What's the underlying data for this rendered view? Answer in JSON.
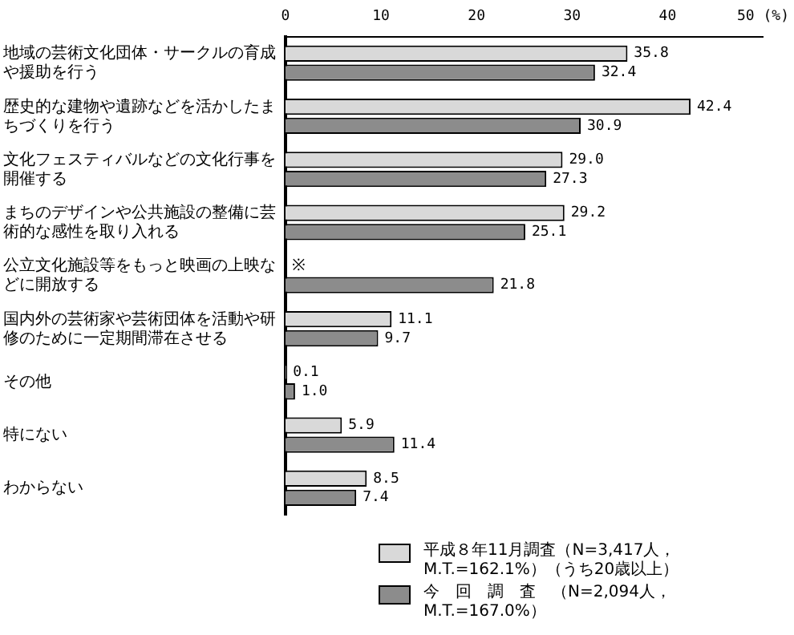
{
  "chart_data": {
    "type": "bar",
    "orientation": "horizontal",
    "categories": [
      "地域の芸術文化団体・サークルの育成や援助を行う",
      "歴史的な建物や遺跡などを活かしたまちづくりを行う",
      "文化フェスティバルなどの文化行事を開催する",
      "まちのデザインや公共施設の整備に芸術的な感性を取り入れる",
      "公立文化施設等をもっと映画の上映などに開放する",
      "国内外の芸術家や芸術団体を活動や研修のために一定期間滞在させる",
      "その他",
      "特にない",
      "わからない"
    ],
    "series": [
      {
        "name": "平成８年11月調査（N=3,417人，M.T.=162.1%）（うち20歳以上）",
        "color": "#d9d9d9",
        "values": [
          35.8,
          42.4,
          29.0,
          29.2,
          null,
          11.1,
          0.1,
          5.9,
          8.5
        ],
        "value_labels": [
          "35.8",
          "42.4",
          "29.0",
          "29.2",
          null,
          "11.1",
          "0.1",
          "5.9",
          "8.5"
        ]
      },
      {
        "name": "今　回　調　査　（N=2,094人，M.T.=167.0%）",
        "color": "#8c8c8c",
        "values": [
          32.4,
          30.9,
          27.3,
          25.1,
          21.8,
          9.7,
          1.0,
          11.4,
          7.4
        ],
        "value_labels": [
          "32.4",
          "30.9",
          "27.3",
          "25.1",
          "21.8",
          "9.7",
          "1.0",
          "11.4",
          "7.4"
        ]
      }
    ],
    "xlim": [
      0,
      50
    ],
    "xticks": [
      0,
      10,
      20,
      30,
      40,
      {
        "value": 50,
        "label": "50 (%)"
      }
    ],
    "grid": false,
    "legend": "bottom right",
    "annotations": [
      {
        "text": "※",
        "x": 0,
        "y": "公立文化施設等をもっと映画の上映などに開放する"
      }
    ]
  }
}
